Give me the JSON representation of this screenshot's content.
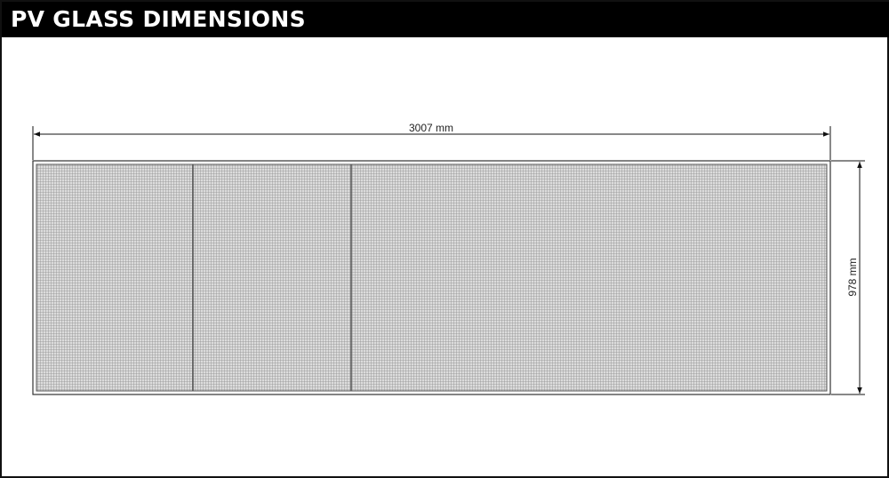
{
  "title": "PV GLASS DIMENSIONS",
  "dimensions": {
    "width_label": "3007 mm",
    "height_label": "978 mm"
  },
  "colors": {
    "title_bar": "#000000",
    "title_text": "#ffffff",
    "panel_fill": "#d7d7d7",
    "grid_line": "#8e8e8e",
    "outline": "#333333"
  }
}
